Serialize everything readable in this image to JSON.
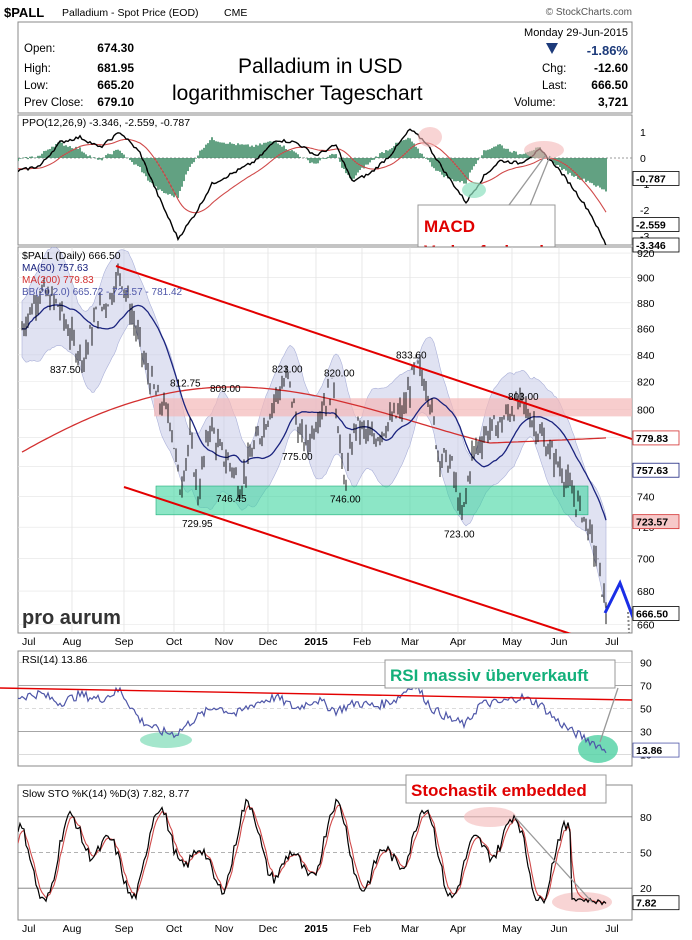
{
  "header": {
    "symbol": "$PALL",
    "description": "Palladium - Spot Price (EOD)",
    "exchange": "CME",
    "credit": "© StockCharts.com",
    "date_line": "Monday   29-Jun-2015",
    "quote_labels": {
      "open": "Open:",
      "high": "High:",
      "low": "Low:",
      "prev": "Prev Close:",
      "chg": "Chg:",
      "last": "Last:",
      "volume": "Volume:"
    },
    "quote_values": {
      "open": "674.30",
      "high": "681.95",
      "low": "665.20",
      "prev": "679.10",
      "pct": "-1.86%",
      "chg": "-12.60",
      "last": "666.50",
      "volume": "3,721"
    }
  },
  "annotations": {
    "title_line1": "Palladium in USD",
    "title_line2": "logarithmischer Tageschart",
    "macd_line1": "MACD",
    "macd_line2": "Verkaufssignal",
    "rsi": "RSI massiv überverkauft",
    "sto": "Stochastik embedded",
    "brand": "pro aurum"
  },
  "colors": {
    "price_bar": "#000000",
    "ma50": "#1a237e",
    "ma200": "#d32f2f",
    "bollinger_band": "#c7cbe8",
    "channel": "#e30000",
    "support_zone": "#3fd6a0",
    "resistance_zone": "#f4b8b8",
    "rsi_line": "#4e56a8",
    "forecast_arrow": "#1a2ee6",
    "annotation_red": "#e00000",
    "annotation_green": "#12b07a"
  },
  "chart_data": [
    {
      "type": "line",
      "panel": "ppo",
      "title": "PPO(12,26,9) -3.346, -2.559, -0.787",
      "series": [
        {
          "name": "PPO",
          "last": -3.346
        },
        {
          "name": "Signal",
          "last": -2.559
        },
        {
          "name": "Histogram",
          "last": -0.787
        }
      ],
      "yticks": [
        "1",
        "0",
        "-1",
        "-2",
        "-3"
      ],
      "last_labels": [
        "-0.787",
        "-2.559",
        "-3.346"
      ]
    },
    {
      "type": "line",
      "panel": "price",
      "title": "$PALL (Daily) 666.50",
      "scale": "log",
      "ylim": [
        655,
        925
      ],
      "yticks": [
        "920",
        "900",
        "880",
        "860",
        "840",
        "820",
        "800",
        "780",
        "760",
        "740",
        "720",
        "700",
        "680",
        "660"
      ],
      "last_labels": [
        "779.83",
        "757.63",
        "723.57",
        "666.50"
      ],
      "series": [
        {
          "name": "MA(50) 757.63",
          "last": 757.63
        },
        {
          "name": "MA(200) 779.83",
          "last": 779.83
        },
        {
          "name": "BB(20,2.0) 665.72 - 723.57 - 781.42",
          "values": [
            665.72,
            723.57,
            781.42
          ]
        }
      ],
      "price_labels": [
        {
          "text": "837.50",
          "value": 837.5
        },
        {
          "text": "812.75",
          "value": 812.75
        },
        {
          "text": "809.00",
          "value": 809
        },
        {
          "text": "746.45",
          "value": 746.45
        },
        {
          "text": "729.95",
          "value": 729.95
        },
        {
          "text": "823.00",
          "value": 823
        },
        {
          "text": "775.00",
          "value": 775
        },
        {
          "text": "820.00",
          "value": 820
        },
        {
          "text": "746.00",
          "value": 746
        },
        {
          "text": "833.60",
          "value": 833.6
        },
        {
          "text": "723.00",
          "value": 723
        },
        {
          "text": "803.00",
          "value": 803
        }
      ],
      "support_zone": [
        728,
        747
      ],
      "resistance_zone": [
        795,
        808
      ],
      "x_labels": [
        "Jul",
        "Aug",
        "Sep",
        "Oct",
        "Nov",
        "Dec",
        "2015",
        "Feb",
        "Mar",
        "Apr",
        "May",
        "Jun",
        "Jul"
      ]
    },
    {
      "type": "line",
      "panel": "rsi",
      "title": "RSI(14) 13.86",
      "ylim": [
        0,
        100
      ],
      "yticks": [
        "90",
        "70",
        "50",
        "30",
        "10"
      ],
      "last_labels": [
        "13.86"
      ]
    },
    {
      "type": "line",
      "panel": "stochastic",
      "title": "Slow STO %K(14) %D(3) 7.82, 8.77",
      "ylim": [
        0,
        100
      ],
      "yticks": [
        "80",
        "50",
        "20"
      ],
      "last_labels": [
        "7.82"
      ],
      "x_labels": [
        "Jul",
        "Aug",
        "Sep",
        "Oct",
        "Nov",
        "Dec",
        "2015",
        "Feb",
        "Mar",
        "Apr",
        "May",
        "Jun",
        "Jul"
      ]
    }
  ]
}
